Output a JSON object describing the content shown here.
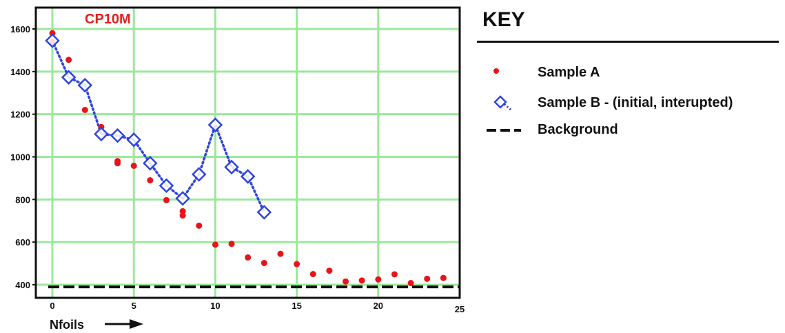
{
  "chart_data": {
    "type": "scatter",
    "title": "CP10M",
    "xlabel": "Nfoils",
    "ylabel": "",
    "xlim": [
      0,
      25
    ],
    "ylim": [
      400,
      1600
    ],
    "x_ticks": [
      "0",
      "5",
      "10",
      "15",
      "20",
      "25"
    ],
    "y_ticks": [
      "400",
      "600",
      "800",
      "1000",
      "1200",
      "1400",
      "1600"
    ],
    "grid": true,
    "colors": {
      "title": "#e3201c",
      "grid": "#9be89b",
      "sample_a": "#e8141a",
      "sample_b": "#2f44e0",
      "background_line": "#111111",
      "frame": "#111111"
    },
    "series": [
      {
        "name": "Sample A",
        "marker": "filled-circle",
        "points": [
          [
            0,
            1580
          ],
          [
            0,
            1540
          ],
          [
            1,
            1455
          ],
          [
            2,
            1220
          ],
          [
            3,
            1140
          ],
          [
            4,
            980
          ],
          [
            4,
            970
          ],
          [
            5,
            958
          ],
          [
            6,
            890
          ],
          [
            7,
            797
          ],
          [
            8,
            745
          ],
          [
            8,
            725
          ],
          [
            9,
            677
          ],
          [
            10,
            588
          ],
          [
            11,
            592
          ],
          [
            12,
            528
          ],
          [
            13,
            502
          ],
          [
            14,
            545
          ],
          [
            15,
            497
          ],
          [
            16,
            450
          ],
          [
            17,
            466
          ],
          [
            18,
            415
          ],
          [
            19,
            420
          ],
          [
            20,
            425
          ],
          [
            21,
            449
          ],
          [
            22,
            408
          ],
          [
            23,
            428
          ],
          [
            24,
            432
          ]
        ]
      },
      {
        "name": "Sample B - (initial, interupted)",
        "marker": "open-diamond",
        "line": "dotted",
        "points": [
          [
            0,
            1545
          ],
          [
            1,
            1373
          ],
          [
            2,
            1336
          ],
          [
            3,
            1107
          ],
          [
            4,
            1100
          ],
          [
            5,
            1080
          ],
          [
            6,
            970
          ],
          [
            7,
            865
          ],
          [
            8,
            805
          ],
          [
            9,
            918
          ],
          [
            10,
            1150
          ],
          [
            11,
            952
          ],
          [
            12,
            908
          ],
          [
            13,
            740
          ]
        ]
      },
      {
        "name": "Background",
        "line": "dashed",
        "value": 390
      }
    ]
  },
  "key": {
    "title": "KEY"
  }
}
